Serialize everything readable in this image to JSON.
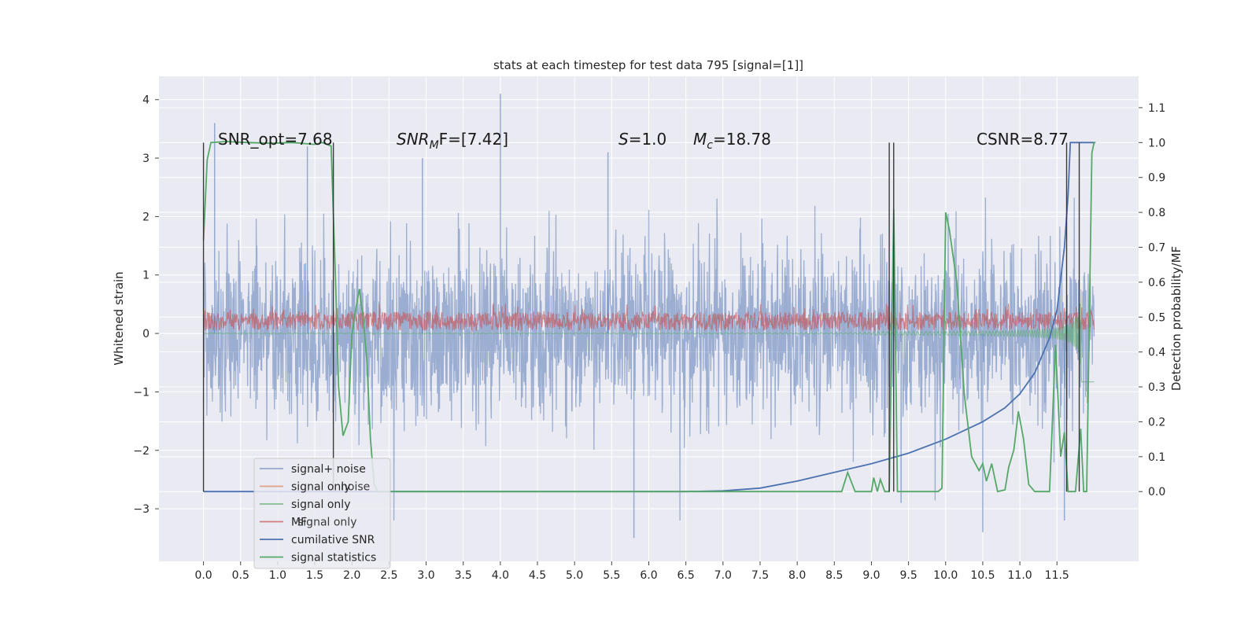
{
  "chart_data": {
    "type": "line",
    "title": "stats at each timestep for test data 795 [signal=[1]]",
    "xlabel": "",
    "ylabel": "Whitened strain",
    "ylabel_right": "Detection probability/MF",
    "xlim": [
      -0.6,
      12.6
    ],
    "ylim": [
      -3.9,
      4.4
    ],
    "ylim_right": [
      -0.2,
      1.19
    ],
    "x_ticks": [
      "0.0",
      "0.5",
      "1.0",
      "1.5",
      "2.0",
      "2.5",
      "3.0",
      "3.5",
      "4.0",
      "4.5",
      "5.0",
      "5.5",
      "6.0",
      "6.5",
      "7.0",
      "7.5",
      "8.0",
      "8.5",
      "9.0",
      "9.5",
      "10.0",
      "10.5",
      "11.0",
      "11.5"
    ],
    "y_ticks": [
      "−3",
      "−2",
      "−1",
      "0",
      "1",
      "2",
      "3",
      "4"
    ],
    "y_ticks_right": [
      "0.0",
      "0.1",
      "0.2",
      "0.3",
      "0.4",
      "0.5",
      "0.6",
      "0.7",
      "0.8",
      "0.9",
      "1.0",
      "1.1"
    ],
    "annotations": {
      "snr_opt": "SNR_opt=7.68",
      "snr_mf_a": "SNR",
      "snr_mf_sub": "M",
      "snr_mf_b": "F=[7.42]",
      "s_a": "S",
      "s_b": "=1.0",
      "mc_a": "M",
      "mc_sub": "c",
      "mc_b": "=18.78",
      "csnr": "CSNR=8.77"
    },
    "legend": {
      "placement": "lower-left",
      "entries": [
        {
          "label": "signal+ noise",
          "color": "#4c72b0",
          "alpha": 0.55
        },
        {
          "label": "signal only",
          "color": "#dd8452",
          "alpha": 0.7
        },
        {
          "label": "signal only",
          "color": "#55a868",
          "alpha": 0.7
        },
        {
          "label": "MF",
          "color": "#c44e52",
          "alpha": 0.7
        },
        {
          "label": "cumilative SNR",
          "color": "#4c72b0",
          "alpha": 1
        },
        {
          "label": "signal statistics",
          "color": "#55a868",
          "alpha": 1
        }
      ],
      "ghost_texts": [
        {
          "text": "signal only",
          "row": 3
        },
        {
          "text": "noise",
          "row": 1
        }
      ]
    },
    "series": [
      {
        "name": "signal+ noise",
        "axis": "left",
        "color": "#4c72b0",
        "note": "dense whitened strain trace, mostly within ±1.5 with spikes to about ±3",
        "x_range": [
          0.0,
          12.0
        ],
        "peaks": [
          [
            0.15,
            3.6
          ],
          [
            1.4,
            3.2
          ],
          [
            2.95,
            3.0
          ],
          [
            4.0,
            4.1
          ],
          [
            5.45,
            3.1
          ],
          [
            5.8,
            -3.5
          ],
          [
            9.4,
            -2.9
          ],
          [
            10.5,
            -3.4
          ],
          [
            11.6,
            -3.2
          ]
        ]
      },
      {
        "name": "MF",
        "axis": "left",
        "color": "#c44e52",
        "note": "matched filter band roughly 0 to 0.4",
        "x_range": [
          0.0,
          12.0
        ]
      },
      {
        "name": "signal only",
        "axis": "left",
        "color": "#55a868",
        "note": "chirp: near zero until about 9, growing oscillation up to ±1.2 near 11.8",
        "x_range": [
          0.0,
          12.0
        ]
      },
      {
        "name": "cumilative SNR",
        "axis": "right",
        "color": "#4c72b0",
        "points": [
          [
            0.0,
            0.0
          ],
          [
            1.0,
            0.0
          ],
          [
            2.0,
            0.0
          ],
          [
            3.0,
            0.0
          ],
          [
            4.0,
            0.0
          ],
          [
            5.0,
            0.0
          ],
          [
            6.0,
            0.0
          ],
          [
            6.5,
            0.0
          ],
          [
            7.0,
            0.002
          ],
          [
            7.5,
            0.01
          ],
          [
            8.0,
            0.03
          ],
          [
            8.5,
            0.055
          ],
          [
            9.0,
            0.08
          ],
          [
            9.5,
            0.11
          ],
          [
            10.0,
            0.15
          ],
          [
            10.5,
            0.2
          ],
          [
            10.8,
            0.24
          ],
          [
            11.0,
            0.28
          ],
          [
            11.2,
            0.34
          ],
          [
            11.4,
            0.44
          ],
          [
            11.5,
            0.52
          ],
          [
            11.6,
            0.7
          ],
          [
            11.65,
            0.85
          ],
          [
            11.68,
            1.0
          ],
          [
            12.0,
            1.0
          ]
        ]
      },
      {
        "name": "signal statistics",
        "axis": "right",
        "color": "#55a868",
        "points": [
          [
            0.0,
            0.72
          ],
          [
            0.05,
            0.95
          ],
          [
            0.1,
            1.0
          ],
          [
            0.3,
            1.003
          ],
          [
            0.6,
            1.0
          ],
          [
            0.9,
            0.998
          ],
          [
            1.2,
            1.0
          ],
          [
            1.5,
            0.995
          ],
          [
            1.6,
            1.0
          ],
          [
            1.72,
            0.99
          ],
          [
            1.78,
            0.6
          ],
          [
            1.82,
            0.3
          ],
          [
            1.88,
            0.16
          ],
          [
            1.95,
            0.2
          ],
          [
            2.0,
            0.45
          ],
          [
            2.05,
            0.52
          ],
          [
            2.1,
            0.58
          ],
          [
            2.15,
            0.5
          ],
          [
            2.2,
            0.38
          ],
          [
            2.25,
            0.15
          ],
          [
            2.3,
            0.02
          ],
          [
            2.35,
            0.0
          ],
          [
            3.0,
            0.0
          ],
          [
            4.0,
            0.0
          ],
          [
            5.0,
            0.0
          ],
          [
            6.0,
            0.0
          ],
          [
            7.0,
            0.0
          ],
          [
            8.0,
            0.0
          ],
          [
            8.6,
            0.0
          ],
          [
            8.68,
            0.055
          ],
          [
            8.78,
            0.0
          ],
          [
            9.0,
            0.0
          ],
          [
            9.03,
            0.04
          ],
          [
            9.08,
            0.0
          ],
          [
            9.12,
            0.035
          ],
          [
            9.18,
            0.0
          ],
          [
            9.24,
            0.0
          ],
          [
            9.3,
            0.81
          ],
          [
            9.35,
            0.0
          ],
          [
            9.9,
            0.0
          ],
          [
            9.95,
            0.01
          ],
          [
            10.0,
            0.8
          ],
          [
            10.05,
            0.75
          ],
          [
            10.15,
            0.6
          ],
          [
            10.25,
            0.28
          ],
          [
            10.35,
            0.1
          ],
          [
            10.45,
            0.06
          ],
          [
            10.5,
            0.08
          ],
          [
            10.55,
            0.03
          ],
          [
            10.62,
            0.08
          ],
          [
            10.7,
            0.0
          ],
          [
            10.8,
            0.005
          ],
          [
            10.85,
            0.07
          ],
          [
            10.92,
            0.12
          ],
          [
            10.98,
            0.23
          ],
          [
            11.05,
            0.15
          ],
          [
            11.12,
            0.02
          ],
          [
            11.2,
            0.0
          ],
          [
            11.4,
            0.0
          ],
          [
            11.48,
            0.42
          ],
          [
            11.55,
            0.1
          ],
          [
            11.6,
            0.17
          ],
          [
            11.65,
            0.0
          ],
          [
            11.75,
            0.0
          ],
          [
            11.82,
            0.18
          ],
          [
            11.86,
            0.0
          ],
          [
            11.9,
            0.0
          ],
          [
            11.97,
            0.97
          ],
          [
            12.0,
            1.0
          ],
          [
            12.02,
            1.0
          ]
        ]
      }
    ],
    "vertical_lines": [
      0.0,
      1.75,
      9.24,
      9.3,
      11.63,
      11.8
    ],
    "grid": true
  }
}
